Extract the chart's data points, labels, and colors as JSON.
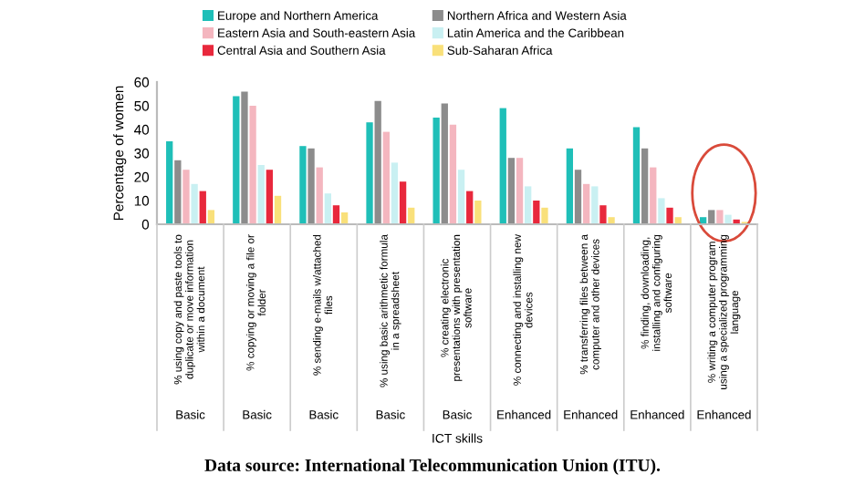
{
  "chart_data": {
    "type": "bar",
    "ylabel": "Percentage of women",
    "xlabel": "ICT skills",
    "categories": [
      "% using copy and paste tools to\nduplicate or move information\nwithin a document",
      "% copying or moving a file or\nfolder",
      "% sending e-mails w/attached\nfiles",
      "% using basic arithmetic formula\nin a spreadsheet",
      "% creating electronic\npresentations with presentation\nsoftware",
      "% connecting and installing new\ndevices",
      "% transferring files between a\ncomputer and other devices",
      "% finding, downloading,\ninstalling and configuring\nsoftware",
      "% writing a computer program\nusing a specialized programming\nlanguage"
    ],
    "series": [
      {
        "name": "Europe and Northern America",
        "color": "#1fbfb8",
        "values": [
          35,
          54,
          33,
          43,
          45,
          49,
          32,
          41,
          3
        ]
      },
      {
        "name": "Northern Africa and Western Asia",
        "color": "#8c8c8c",
        "values": [
          27,
          56,
          32,
          52,
          51,
          28,
          23,
          32,
          6
        ]
      },
      {
        "name": "Eastern Asia and South-eastern Asia",
        "color": "#f4b6bf",
        "values": [
          23,
          50,
          24,
          39,
          42,
          28,
          17,
          24,
          6
        ]
      },
      {
        "name": "Latin America and the Caribbean",
        "color": "#c9f0f2",
        "values": [
          17,
          25,
          13,
          26,
          23,
          16,
          16,
          11,
          4
        ]
      },
      {
        "name": "Central Asia and Southern Asia",
        "color": "#e8283c",
        "values": [
          14,
          23,
          8,
          18,
          14,
          10,
          8,
          7,
          2
        ]
      },
      {
        "name": "Sub-Saharan Africa",
        "color": "#f9e07a",
        "values": [
          6,
          12,
          5,
          7,
          10,
          7,
          3,
          3,
          1
        ]
      }
    ],
    "ylim": [
      0,
      60
    ],
    "yticks": [
      0,
      10,
      20,
      30,
      40,
      50,
      60
    ],
    "legend": "top",
    "annotations": [
      "Basic",
      "Basic",
      "Basic",
      "Basic",
      "Basic",
      "Enhanced",
      "Enhanced",
      "Enhanced",
      "Enhanced",
      "Data source: International Telecommunication Union (ITU)."
    ]
  }
}
